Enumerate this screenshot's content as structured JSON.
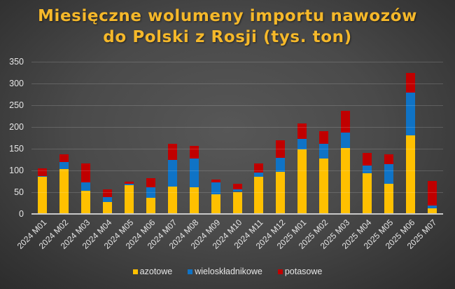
{
  "title": {
    "line1": "Miesięczne wolumeny importu nawozów",
    "line2": "do Polski z Rosji (tys. ton)"
  },
  "legend": [
    {
      "name": "azotowe",
      "color": "#ffc000"
    },
    {
      "name": "wieloskładnikowe",
      "color": "#0f73c6"
    },
    {
      "name": "potasowe",
      "color": "#c00000"
    }
  ],
  "chart_data": {
    "type": "bar",
    "stacked": true,
    "title": "Miesięczne wolumeny importu nawozów do Polski z Rosji (tys. ton)",
    "xlabel": "",
    "ylabel": "",
    "ylim": [
      0,
      350
    ],
    "yticks": [
      0,
      50,
      100,
      150,
      200,
      250,
      300,
      350
    ],
    "grid": true,
    "legend_position": "bottom",
    "categories": [
      "2024 M01",
      "2024 M02",
      "2024 M03",
      "2024 M04",
      "2024 M05",
      "2024 M06",
      "2024 M07",
      "2024 M08",
      "2024 M09",
      "2024 M10",
      "2024 M11",
      "2024 M12",
      "2025 M01",
      "2025 M02",
      "2025 M03",
      "2025 M04",
      "2025 M05",
      "2025 M06",
      "2025 M07"
    ],
    "series": [
      {
        "name": "azotowe",
        "color": "#ffc000",
        "values": [
          84,
          103,
          52,
          26,
          66,
          37,
          62,
          61,
          44,
          50,
          85,
          96,
          148,
          127,
          151,
          93,
          69,
          180,
          12
        ]
      },
      {
        "name": "wieloskładnikowe",
        "color": "#0f73c6",
        "values": [
          3,
          16,
          19,
          12,
          2,
          24,
          61,
          66,
          27,
          6,
          10,
          32,
          24,
          34,
          35,
          18,
          45,
          98,
          7
        ]
      },
      {
        "name": "potasowe",
        "color": "#c00000",
        "values": [
          17,
          18,
          44,
          17,
          5,
          21,
          37,
          28,
          8,
          13,
          20,
          41,
          35,
          29,
          50,
          29,
          22,
          45,
          56
        ]
      }
    ]
  }
}
